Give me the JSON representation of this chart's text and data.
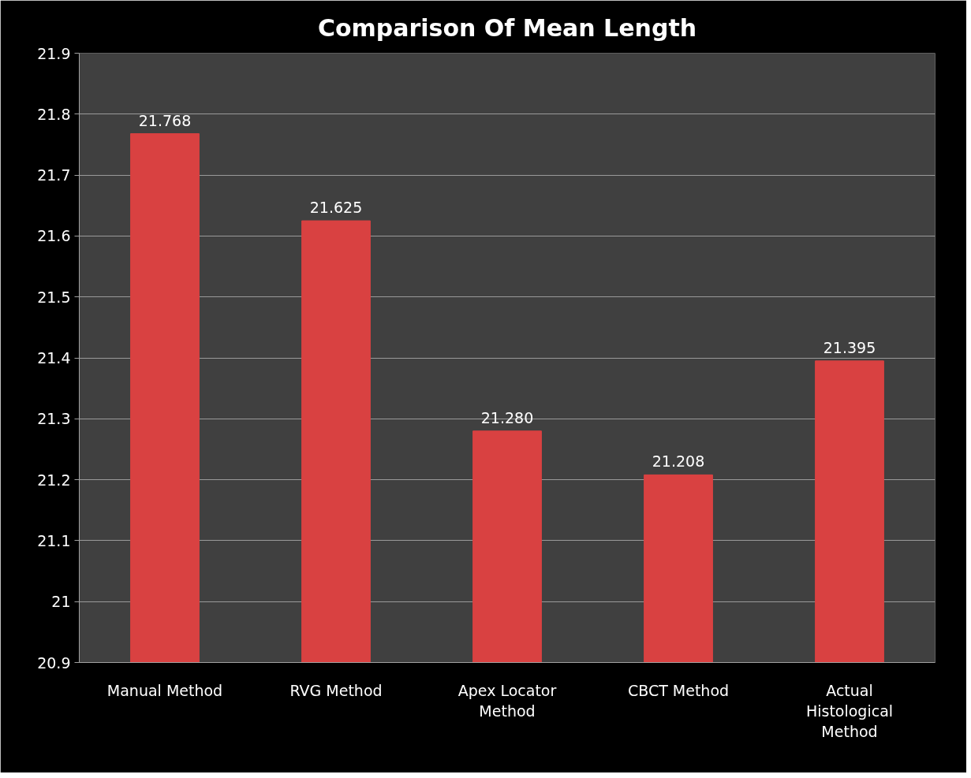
{
  "chart_data": {
    "type": "bar",
    "title": "Comparison Of Mean Length",
    "categories": [
      "Manual Method",
      "RVG Method",
      "Apex Locator\nMethod",
      "CBCT Method",
      "Actual\nHistological\nMethod"
    ],
    "values": [
      21.768,
      21.625,
      21.28,
      21.208,
      21.395
    ],
    "value_labels": [
      "21.768",
      "21.625",
      "21.280",
      "21.208",
      "21.395"
    ],
    "color": "#d94141",
    "ylim": [
      20.9,
      21.9
    ],
    "yticks": [
      20.9,
      21,
      21.1,
      21.2,
      21.3,
      21.4,
      21.5,
      21.6,
      21.7,
      21.8,
      21.9
    ],
    "grid": "y"
  }
}
